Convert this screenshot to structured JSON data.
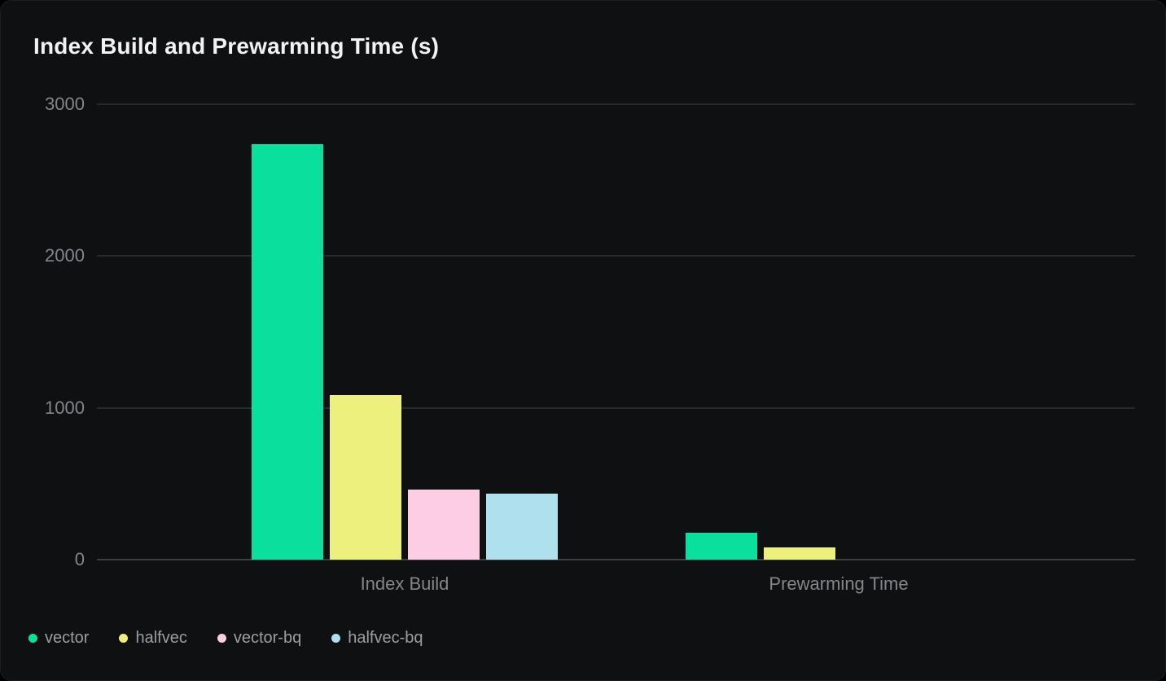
{
  "chart_data": {
    "type": "bar",
    "title": "Index Build and Prewarming Time (s)",
    "categories": [
      "Index Build",
      "Prewarming Time"
    ],
    "series": [
      {
        "name": "vector",
        "color": "#0bdf9d",
        "values": [
          2735,
          175
        ]
      },
      {
        "name": "halfvec",
        "color": "#eef07d",
        "values": [
          1085,
          78
        ]
      },
      {
        "name": "vector-bq",
        "color": "#fdcde6",
        "values": [
          460,
          0
        ]
      },
      {
        "name": "halfvec-bq",
        "color": "#aee0ee",
        "values": [
          435,
          0
        ]
      }
    ],
    "ylim": [
      0,
      3000
    ],
    "yticks": [
      0,
      1000,
      2000,
      3000
    ],
    "xlabel": "",
    "ylabel": "",
    "grid": true,
    "legend_position": "bottom-left",
    "legend_entries": [
      "vector",
      "halfvec",
      "vector-bq",
      "halfvec-bq"
    ]
  },
  "colors": {
    "page_background": "#000000",
    "card_background": "#0f1011",
    "grid_line": "#27292c",
    "zero_line": "#3b3e42",
    "title_text": "#f2f2f4",
    "axis_text": "#85858c",
    "legend_text": "#9d9da4"
  }
}
